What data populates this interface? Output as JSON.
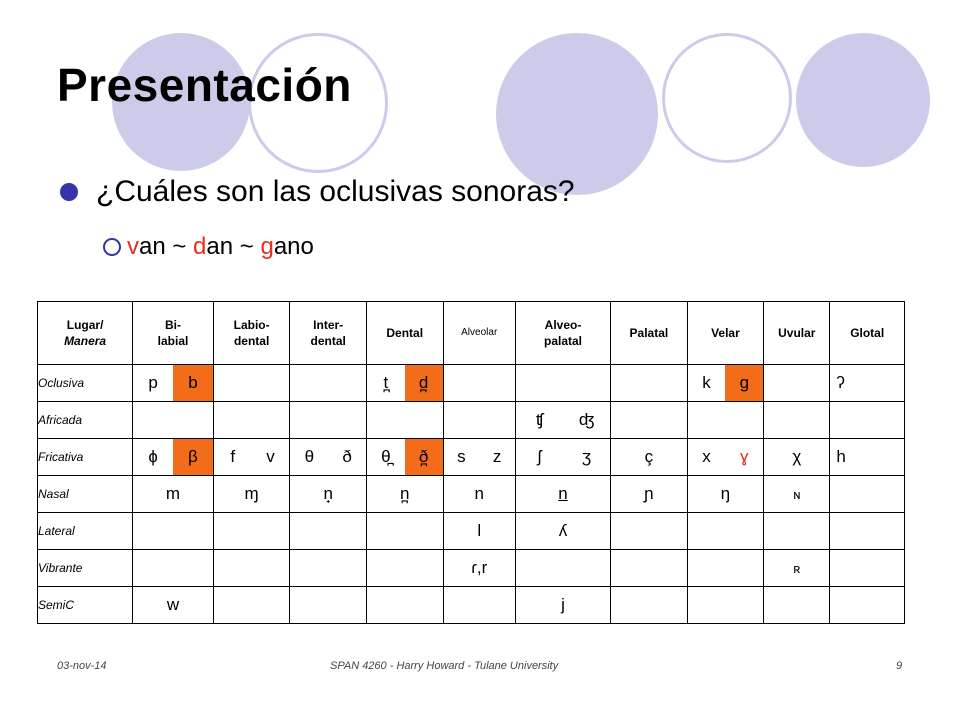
{
  "slide": {
    "title": "Presentación",
    "bullet1": "¿Cuáles son las oclusivas sonoras?",
    "bullet2": {
      "parts": [
        {
          "text": "v",
          "red": true
        },
        {
          "text": "an ~ ",
          "red": false
        },
        {
          "text": "d",
          "red": true
        },
        {
          "text": "an ~ ",
          "red": false
        },
        {
          "text": "g",
          "red": true
        },
        {
          "text": "ano",
          "red": false
        }
      ]
    },
    "accent_color": "#e5301f",
    "highlight_color": "#f26c1a",
    "decor_color": "#ccccea"
  },
  "table": {
    "headers": {
      "corner_line1": "Lugar/",
      "corner_line2": "Manera",
      "bilabial": "Bi-\nlabial",
      "labiodental": "Labio-\ndental",
      "interdental": "Inter-\ndental",
      "dental": "Dental",
      "alveolar": "Alveolar",
      "alveopalatal": "Alveo-\npalatal",
      "palatal": "Palatal",
      "velar": "Velar",
      "uvular": "Uvular",
      "glotal": "Glotal"
    },
    "rows": {
      "oclusiva": "Oclusiva",
      "africada": "Africada",
      "fricativa": "Fricativa",
      "nasal": "Nasal",
      "lateral": "Lateral",
      "vibrante": "Vibrante",
      "semic": "SemiC"
    },
    "cells": {
      "ocl_p": "p",
      "ocl_b": "b",
      "ocl_t": "t̪",
      "ocl_d": "d̪",
      "ocl_k": "k",
      "ocl_g": "g",
      "ocl_glot": "ʔ",
      "afr_ch": "ʧ",
      "afr_dj": "ʤ",
      "fri_phi": "ɸ",
      "fri_beta": "β",
      "fri_f": "f",
      "fri_v": "v",
      "fri_theta": "θ",
      "fri_eth": "ð",
      "fri_dtheta": "θ̪",
      "fri_deth": "ð̪",
      "fri_s": "s",
      "fri_z": "z",
      "fri_esh": "ʃ",
      "fri_ezh": "ʒ",
      "fri_c": "ç",
      "fri_x": "x",
      "fri_gamma": "ɣ",
      "fri_chi": "χ",
      "fri_h": "h",
      "nas_m": "m",
      "nas_mj": "ɱ",
      "nas_ni": "n̟",
      "nas_nd": "n̪",
      "nas_n": "n",
      "nas_nap": "n",
      "nas_ny": "ɲ",
      "nas_ng": "ŋ",
      "nas_uv": "ɴ",
      "lat_l": "l",
      "lat_ll": "ʎ",
      "vib_r": "ɾ,r",
      "vib_uv": "ʀ",
      "semi_w": "w",
      "semi_j": "j"
    }
  },
  "footer": {
    "date": "03-nov-14",
    "course": "SPAN 4260 - Harry Howard - Tulane University",
    "page": "9"
  }
}
